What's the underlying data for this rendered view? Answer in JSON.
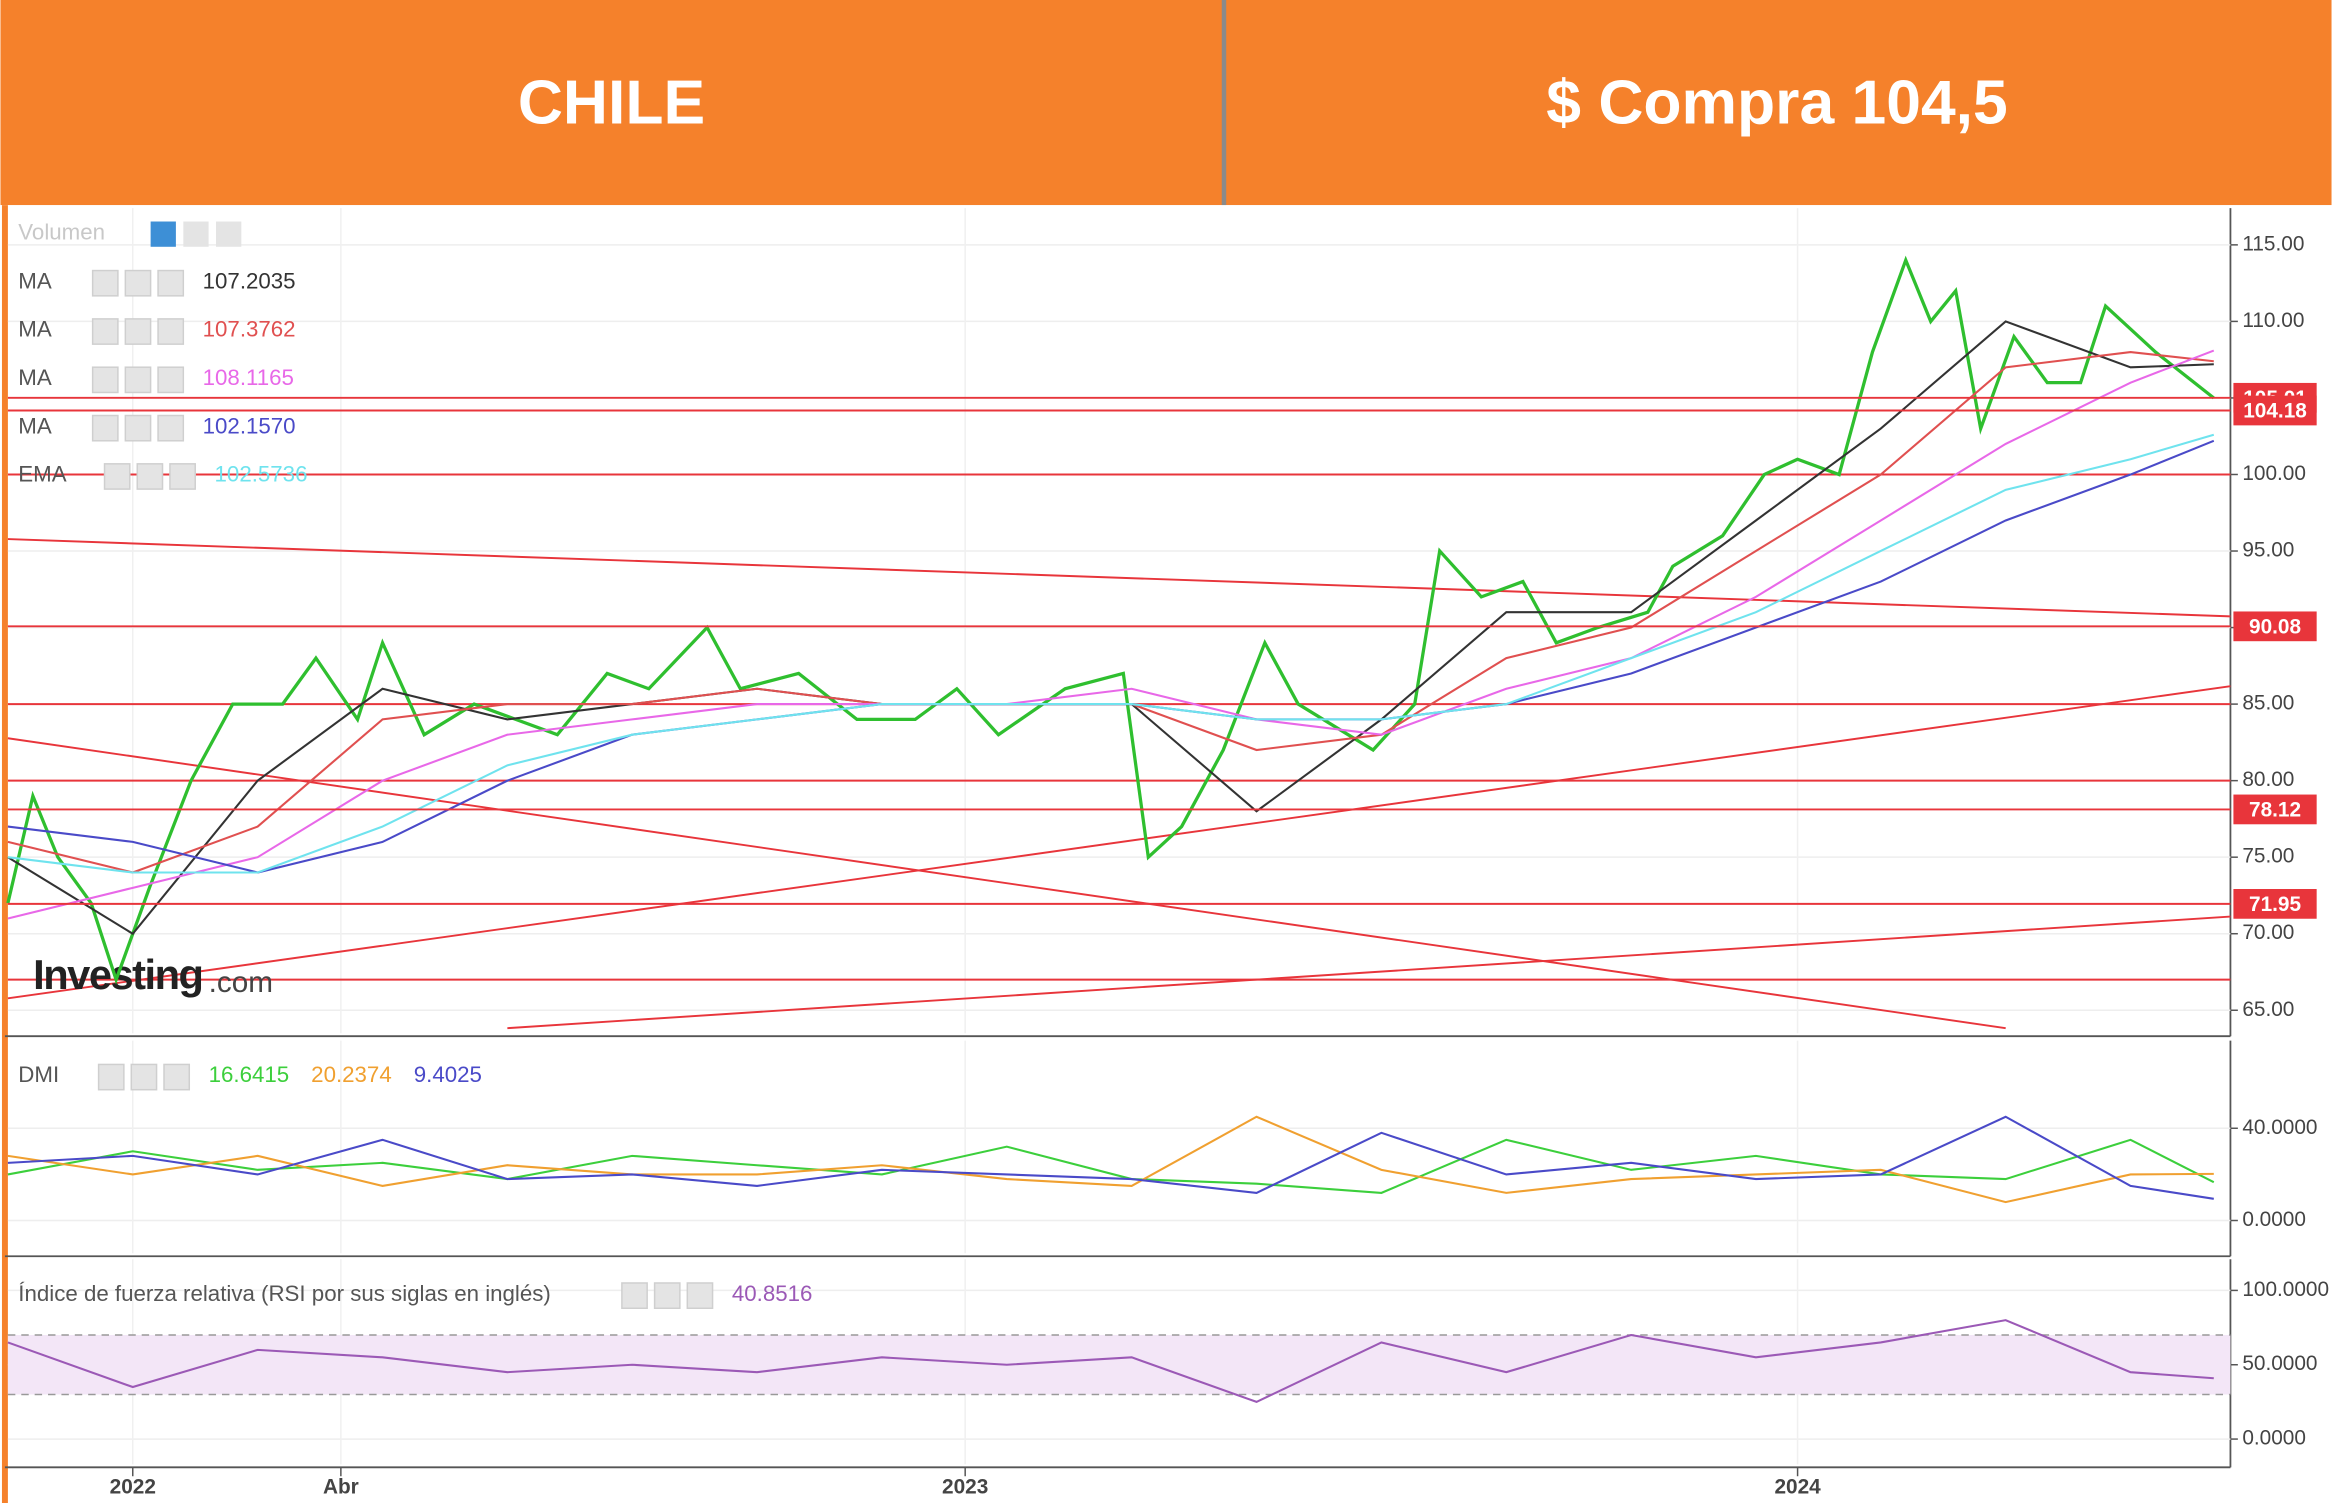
{
  "header": {
    "left": "CHILE",
    "right": "$ Compra 104,5"
  },
  "chart_data": [
    {
      "type": "line",
      "volume_label": "Volumen",
      "watermark": "Investing",
      "watermark_suffix": ".com",
      "xlim": [
        2021.85,
        2024.52
      ],
      "ylim": [
        63.5,
        117.4
      ],
      "grid": true,
      "yticks": [
        {
          "value": 65,
          "label": "65.00"
        },
        {
          "value": 70,
          "label": "70.00"
        },
        {
          "value": 75,
          "label": "75.00"
        },
        {
          "value": 80,
          "label": "80.00"
        },
        {
          "value": 85,
          "label": "85.00"
        },
        {
          "value": 90,
          "label": "90.00"
        },
        {
          "value": 95,
          "label": "95.00"
        },
        {
          "value": 100,
          "label": "100.00"
        },
        {
          "value": 105,
          "label": "105.00"
        },
        {
          "value": 110,
          "label": "110.00"
        },
        {
          "value": 115,
          "label": "115.00"
        }
      ],
      "levels": [
        100,
        85,
        80,
        67
      ],
      "labeled_levels": [
        105.01,
        104.18,
        90.08,
        78.12,
        71.95
      ],
      "level_color": "#e8353b",
      "trendlines": [
        {
          "x": [
            2021.85,
            2024.52
          ],
          "y": [
            95.78,
            90.73
          ]
        },
        {
          "x": [
            2021.85,
            2024.25
          ],
          "y": [
            82.77,
            63.83
          ]
        },
        {
          "x": [
            2021.85,
            2024.52
          ],
          "y": [
            65.78,
            86.17
          ]
        },
        {
          "x": [
            2022.45,
            2024.52
          ],
          "y": [
            63.83,
            71.12
          ]
        }
      ],
      "series": [
        {
          "color": "#2fbf2f",
          "x": [
            2021.85,
            2021.88,
            2021.91,
            2021.95,
            2021.98,
            2022.02,
            2022.07,
            2022.12,
            2022.18,
            2022.22,
            2022.27,
            2022.3,
            2022.35,
            2022.41,
            2022.46,
            2022.51,
            2022.57,
            2022.62,
            2022.69,
            2022.73,
            2022.8,
            2022.87,
            2022.94,
            2022.99,
            2023.04,
            2023.12,
            2023.19,
            2023.22,
            2023.26,
            2023.31,
            2023.36,
            2023.4,
            2023.46,
            2023.49,
            2023.54,
            2023.57,
            2023.62,
            2023.67,
            2023.71,
            2023.76,
            2023.82,
            2023.85,
            2023.91,
            2023.96,
            2024.0,
            2024.05,
            2024.09,
            2024.13,
            2024.16,
            2024.19,
            2024.22,
            2024.26,
            2024.3,
            2024.34,
            2024.37,
            2024.43,
            2024.5
          ],
          "values": [
            72,
            79,
            75,
            72,
            67,
            73,
            80,
            85,
            85,
            88,
            84,
            89,
            83,
            85,
            84,
            83,
            87,
            86,
            90,
            86,
            87,
            84,
            84,
            86,
            83,
            86,
            87,
            75,
            77,
            82,
            89,
            85,
            83,
            82,
            85,
            95,
            92,
            93,
            89,
            90,
            91,
            94,
            96,
            100,
            101,
            100,
            108,
            114,
            110,
            112,
            103,
            109,
            106,
            106,
            111,
            108,
            105
          ]
        },
        {
          "name": "MA",
          "legend_value": "107.2035",
          "color": "#333333",
          "x": [
            2021.85,
            2022.0,
            2022.15,
            2022.3,
            2022.45,
            2022.6,
            2022.75,
            2022.9,
            2023.05,
            2023.2,
            2023.35,
            2023.5,
            2023.65,
            2023.8,
            2023.95,
            2024.1,
            2024.25,
            2024.4,
            2024.5
          ],
          "values": [
            75,
            70,
            80,
            86,
            84,
            85,
            86,
            85,
            85,
            85,
            78,
            84,
            91,
            91,
            97,
            103,
            110,
            107,
            107.2
          ]
        },
        {
          "name": "MA",
          "legend_value": "107.3762",
          "color": "#e05050",
          "x": [
            2021.85,
            2022.0,
            2022.15,
            2022.3,
            2022.45,
            2022.6,
            2022.75,
            2022.9,
            2023.05,
            2023.2,
            2023.35,
            2023.5,
            2023.65,
            2023.8,
            2023.95,
            2024.1,
            2024.25,
            2024.4,
            2024.5
          ],
          "values": [
            76,
            74,
            77,
            84,
            85,
            85,
            86,
            85,
            85,
            85,
            82,
            83,
            88,
            90,
            95,
            100,
            107,
            108,
            107.4
          ]
        },
        {
          "name": "MA",
          "legend_value": "108.1165",
          "color": "#e868e8",
          "x": [
            2021.85,
            2022.0,
            2022.15,
            2022.3,
            2022.45,
            2022.6,
            2022.75,
            2022.9,
            2023.05,
            2023.2,
            2023.35,
            2023.5,
            2023.65,
            2023.8,
            2023.95,
            2024.1,
            2024.25,
            2024.4,
            2024.5
          ],
          "values": [
            71,
            73,
            75,
            80,
            83,
            84,
            85,
            85,
            85,
            86,
            84,
            83,
            86,
            88,
            92,
            97,
            102,
            106,
            108.1
          ]
        },
        {
          "name": "MA",
          "legend_value": "102.1570",
          "color": "#4a4ac8",
          "x": [
            2021.85,
            2022.0,
            2022.15,
            2022.3,
            2022.45,
            2022.6,
            2022.75,
            2022.9,
            2023.05,
            2023.2,
            2023.35,
            2023.5,
            2023.65,
            2023.8,
            2023.95,
            2024.1,
            2024.25,
            2024.4,
            2024.5
          ],
          "values": [
            77,
            76,
            74,
            76,
            80,
            83,
            84,
            85,
            85,
            85,
            84,
            84,
            85,
            87,
            90,
            93,
            97,
            100,
            102.2
          ]
        },
        {
          "name": "EMA",
          "legend_value": "102.5736",
          "color": "#6fe3ee",
          "x": [
            2021.85,
            2022.0,
            2022.15,
            2022.3,
            2022.45,
            2022.6,
            2022.75,
            2022.9,
            2023.05,
            2023.2,
            2023.35,
            2023.5,
            2023.65,
            2023.8,
            2023.95,
            2024.1,
            2024.25,
            2024.4,
            2024.5
          ],
          "values": [
            75,
            74,
            74,
            77,
            81,
            83,
            84,
            85,
            85,
            85,
            84,
            84,
            85,
            88,
            91,
            95,
            99,
            101,
            102.6
          ]
        }
      ]
    },
    {
      "type": "line",
      "title": "DMI",
      "xlim": [
        2021.85,
        2024.52
      ],
      "ylim": [
        -14.2,
        78
      ],
      "grid": true,
      "yticks": [
        {
          "value": 0,
          "label": "0.0000"
        },
        {
          "value": 40,
          "label": "40.0000"
        }
      ],
      "series": [
        {
          "legend_value": "16.6415",
          "color": "#3ccf3c",
          "x": [
            2021.85,
            2022.0,
            2022.15,
            2022.3,
            2022.45,
            2022.6,
            2022.75,
            2022.9,
            2023.05,
            2023.2,
            2023.35,
            2023.5,
            2023.65,
            2023.8,
            2023.95,
            2024.1,
            2024.25,
            2024.4,
            2024.5
          ],
          "values": [
            20,
            30,
            22,
            25,
            18,
            28,
            24,
            20,
            32,
            18,
            16,
            12,
            35,
            22,
            28,
            20,
            18,
            35,
            16.6
          ]
        },
        {
          "legend_value": "20.2374",
          "color": "#f0a030",
          "x": [
            2021.85,
            2022.0,
            2022.15,
            2022.3,
            2022.45,
            2022.6,
            2022.75,
            2022.9,
            2023.05,
            2023.2,
            2023.35,
            2023.5,
            2023.65,
            2023.8,
            2023.95,
            2024.1,
            2024.25,
            2024.4,
            2024.5
          ],
          "values": [
            28,
            20,
            28,
            15,
            24,
            20,
            20,
            24,
            18,
            15,
            45,
            22,
            12,
            18,
            20,
            22,
            8,
            20,
            20.2
          ]
        },
        {
          "legend_value": "9.4025",
          "color": "#4a4ac8",
          "x": [
            2021.85,
            2022.0,
            2022.15,
            2022.3,
            2022.45,
            2022.6,
            2022.75,
            2022.9,
            2023.05,
            2023.2,
            2023.35,
            2023.5,
            2023.65,
            2023.8,
            2023.95,
            2024.1,
            2024.25,
            2024.4,
            2024.5
          ],
          "values": [
            25,
            28,
            20,
            35,
            18,
            20,
            15,
            22,
            20,
            18,
            12,
            38,
            20,
            25,
            18,
            20,
            45,
            15,
            9.4
          ]
        }
      ]
    },
    {
      "type": "line",
      "title": "Índice de fuerza relativa (RSI por sus siglas en inglés)",
      "xlim": [
        2021.85,
        2024.52
      ],
      "ylim": [
        -17,
        121
      ],
      "grid": true,
      "band": [
        30,
        70
      ],
      "yticks": [
        {
          "value": 0,
          "label": "0.0000"
        },
        {
          "value": 50,
          "label": "50.0000"
        },
        {
          "value": 100,
          "label": "100.0000"
        }
      ],
      "xticks": [
        {
          "value": 2022,
          "label": "2022"
        },
        {
          "value": 2022.25,
          "label": "Abr"
        },
        {
          "value": 2023,
          "label": "2023"
        },
        {
          "value": 2024,
          "label": "2024"
        }
      ],
      "series": [
        {
          "legend_value": "40.8516",
          "color": "#9b59b6",
          "x": [
            2021.85,
            2022.0,
            2022.15,
            2022.3,
            2022.45,
            2022.6,
            2022.75,
            2022.9,
            2023.05,
            2023.2,
            2023.35,
            2023.5,
            2023.65,
            2023.8,
            2023.95,
            2024.1,
            2024.25,
            2024.4,
            2024.5
          ],
          "values": [
            65,
            35,
            60,
            55,
            45,
            50,
            45,
            55,
            50,
            55,
            25,
            65,
            45,
            70,
            55,
            65,
            80,
            45,
            40.9
          ]
        }
      ]
    }
  ]
}
